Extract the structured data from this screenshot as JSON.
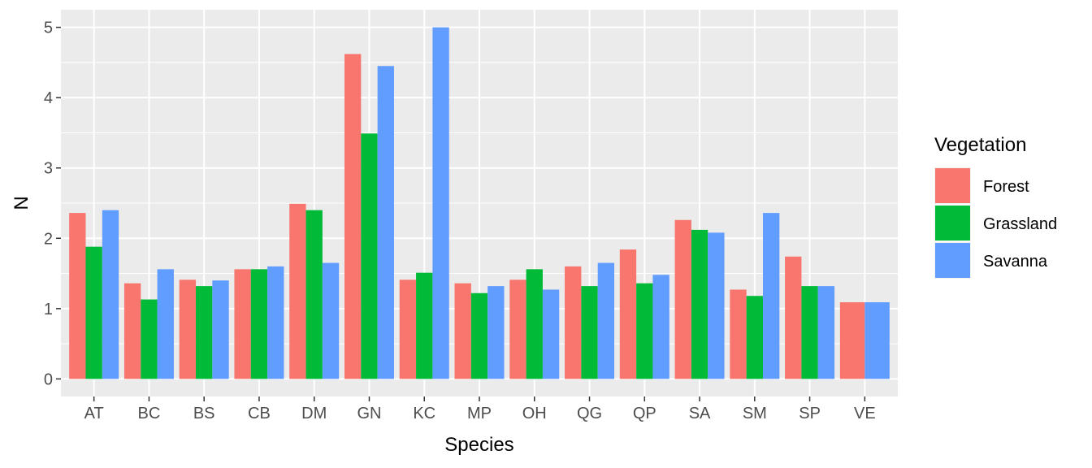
{
  "chart_data": {
    "type": "bar",
    "title": "",
    "xlabel": "Species",
    "ylabel": "N",
    "ylim": [
      0,
      5
    ],
    "yticks": [
      "0",
      "1",
      "2",
      "3",
      "4",
      "5"
    ],
    "categories": [
      "AT",
      "BC",
      "BS",
      "CB",
      "DM",
      "GN",
      "KC",
      "MP",
      "OH",
      "QG",
      "QP",
      "SA",
      "SM",
      "SP",
      "VE"
    ],
    "legend": {
      "title": "Vegetation",
      "placement": "right"
    },
    "series": [
      {
        "name": "Forest",
        "color": "#F8766D",
        "values": [
          2.36,
          1.36,
          1.41,
          1.56,
          2.49,
          4.62,
          1.41,
          1.36,
          1.41,
          1.6,
          1.84,
          2.26,
          1.27,
          1.74,
          1.09
        ]
      },
      {
        "name": "Grassland",
        "color": "#00BA38",
        "values": [
          1.88,
          1.13,
          1.32,
          1.56,
          2.4,
          3.49,
          1.51,
          1.22,
          1.56,
          1.32,
          1.36,
          2.12,
          1.18,
          1.32,
          null
        ]
      },
      {
        "name": "Savanna",
        "color": "#619CFF",
        "values": [
          2.4,
          1.56,
          1.4,
          1.6,
          1.65,
          4.45,
          5.0,
          1.32,
          1.27,
          1.65,
          1.48,
          2.08,
          2.36,
          1.32,
          1.09
        ]
      }
    ]
  }
}
